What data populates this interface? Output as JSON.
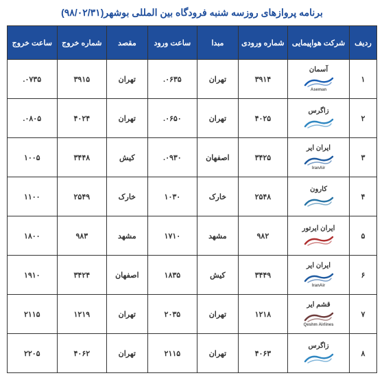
{
  "title": "برنامه پروازهای روزسه شنبه فرودگاه بین المللی بوشهر(۹۸/۰۲/۳۱)",
  "headers": {
    "row": "ردیف",
    "airline": "شرکت هواپیمایی",
    "flight_in": "شماره ورودی",
    "origin": "مبدا",
    "time_in": "ساعت ورود",
    "dest": "مقصد",
    "flight_out": "شماره خروج",
    "time_out": "ساعت خروج"
  },
  "rows": [
    {
      "num": "۱",
      "airline": "آسمان",
      "airline_latin": "Aseman",
      "logo_color": "#1a5fb4",
      "flight_in": "۳۹۱۴",
      "origin": "تهران",
      "time_in": "۰۶۳۵.",
      "dest": "تهران",
      "flight_out": "۳۹۱۵",
      "time_out": "۰۷۳۵."
    },
    {
      "num": "۲",
      "airline": "زاگرس",
      "airline_latin": "",
      "logo_color": "#2e86c1",
      "flight_in": "۴۰۲۵",
      "origin": "تهران",
      "time_in": "۰۶۵۰.",
      "dest": "تهران",
      "flight_out": "۴۰۲۴",
      "time_out": "۰۸۰۵."
    },
    {
      "num": "۳",
      "airline": "ایران ایر",
      "airline_latin": "IranAir",
      "logo_color": "#1e5aa0",
      "flight_in": "۳۴۲۵",
      "origin": "اصفهان",
      "time_in": "۰۹۳۰.",
      "dest": "کیش",
      "flight_out": "۳۴۴۸",
      "time_out": "۱۰۰۵"
    },
    {
      "num": "۴",
      "airline": "کارون",
      "airline_latin": "",
      "logo_color": "#2874a6",
      "flight_in": "۲۵۴۸",
      "origin": "خارک",
      "time_in": "۱۰۳۰",
      "dest": "خارک",
      "flight_out": "۲۵۴۹",
      "time_out": "۱۱۰۰"
    },
    {
      "num": "۵",
      "airline": "ایران ایرتور",
      "airline_latin": "",
      "logo_color": "#b03030",
      "flight_in": "۹۸۲",
      "origin": "مشهد",
      "time_in": "۱۷۱۰",
      "dest": "مشهد",
      "flight_out": "۹۸۳",
      "time_out": "۱۸۰۰"
    },
    {
      "num": "۶",
      "airline": "ایران ایر",
      "airline_latin": "IranAir",
      "logo_color": "#1e5aa0",
      "flight_in": "۳۴۴۹",
      "origin": "کیش",
      "time_in": "۱۸۳۵",
      "dest": "اصفهان",
      "flight_out": "۳۴۲۴",
      "time_out": "۱۹۱۰"
    },
    {
      "num": "۷",
      "airline": "قشم ایر",
      "airline_latin": "Qeshm Airlines",
      "logo_color": "#6e3b3b",
      "flight_in": "۱۲۱۸",
      "origin": "تهران",
      "time_in": "۲۰۳۵",
      "dest": "تهران",
      "flight_out": "۱۲۱۹",
      "time_out": "۲۱۱۵"
    },
    {
      "num": "۸",
      "airline": "زاگرس",
      "airline_latin": "",
      "logo_color": "#2e86c1",
      "flight_in": "۴۰۶۳",
      "origin": "تهران",
      "time_in": "۲۱۱۵",
      "dest": "تهران",
      "flight_out": "۴۰۶۲",
      "time_out": "۲۲۰۵"
    }
  ]
}
